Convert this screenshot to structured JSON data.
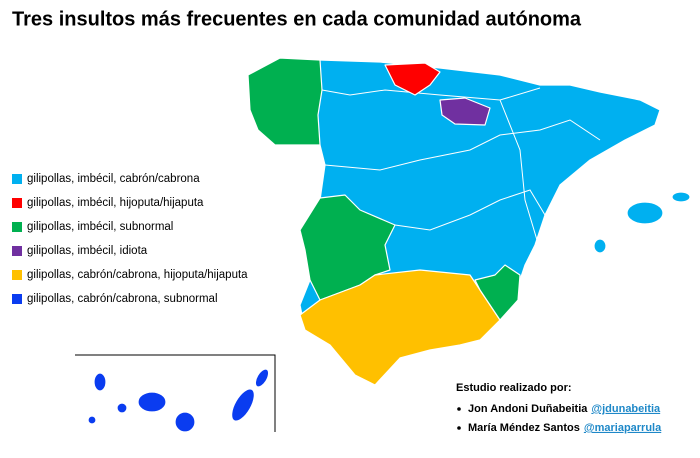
{
  "title": "Tres insultos más frecuentes en cada comunidad autónoma",
  "legend": [
    {
      "label": "gilipollas, imbécil, cabrón/cabrona",
      "color": "#00b0f0"
    },
    {
      "label": "gilipollas, imbécil, hijoputa/hijaputa",
      "color": "#ff0000"
    },
    {
      "label": "gilipollas, imbécil, subnormal",
      "color": "#00b050"
    },
    {
      "label": "gilipollas, imbécil, idiota",
      "color": "#7030a0"
    },
    {
      "label": "gilipollas, cabrón/cabrona, hijoputa/hijaputa",
      "color": "#ffc000"
    },
    {
      "label": "gilipollas, cabrón/cabrona, subnormal",
      "color": "#0a3cf0"
    }
  ],
  "credits": {
    "heading": "Estudio realizado por:",
    "authors": [
      {
        "name": "Jon Andoni Duñabeitia",
        "handle": "@jdunabeitia"
      },
      {
        "name": "María Méndez Santos",
        "handle": "@mariaparrula"
      }
    ]
  }
}
